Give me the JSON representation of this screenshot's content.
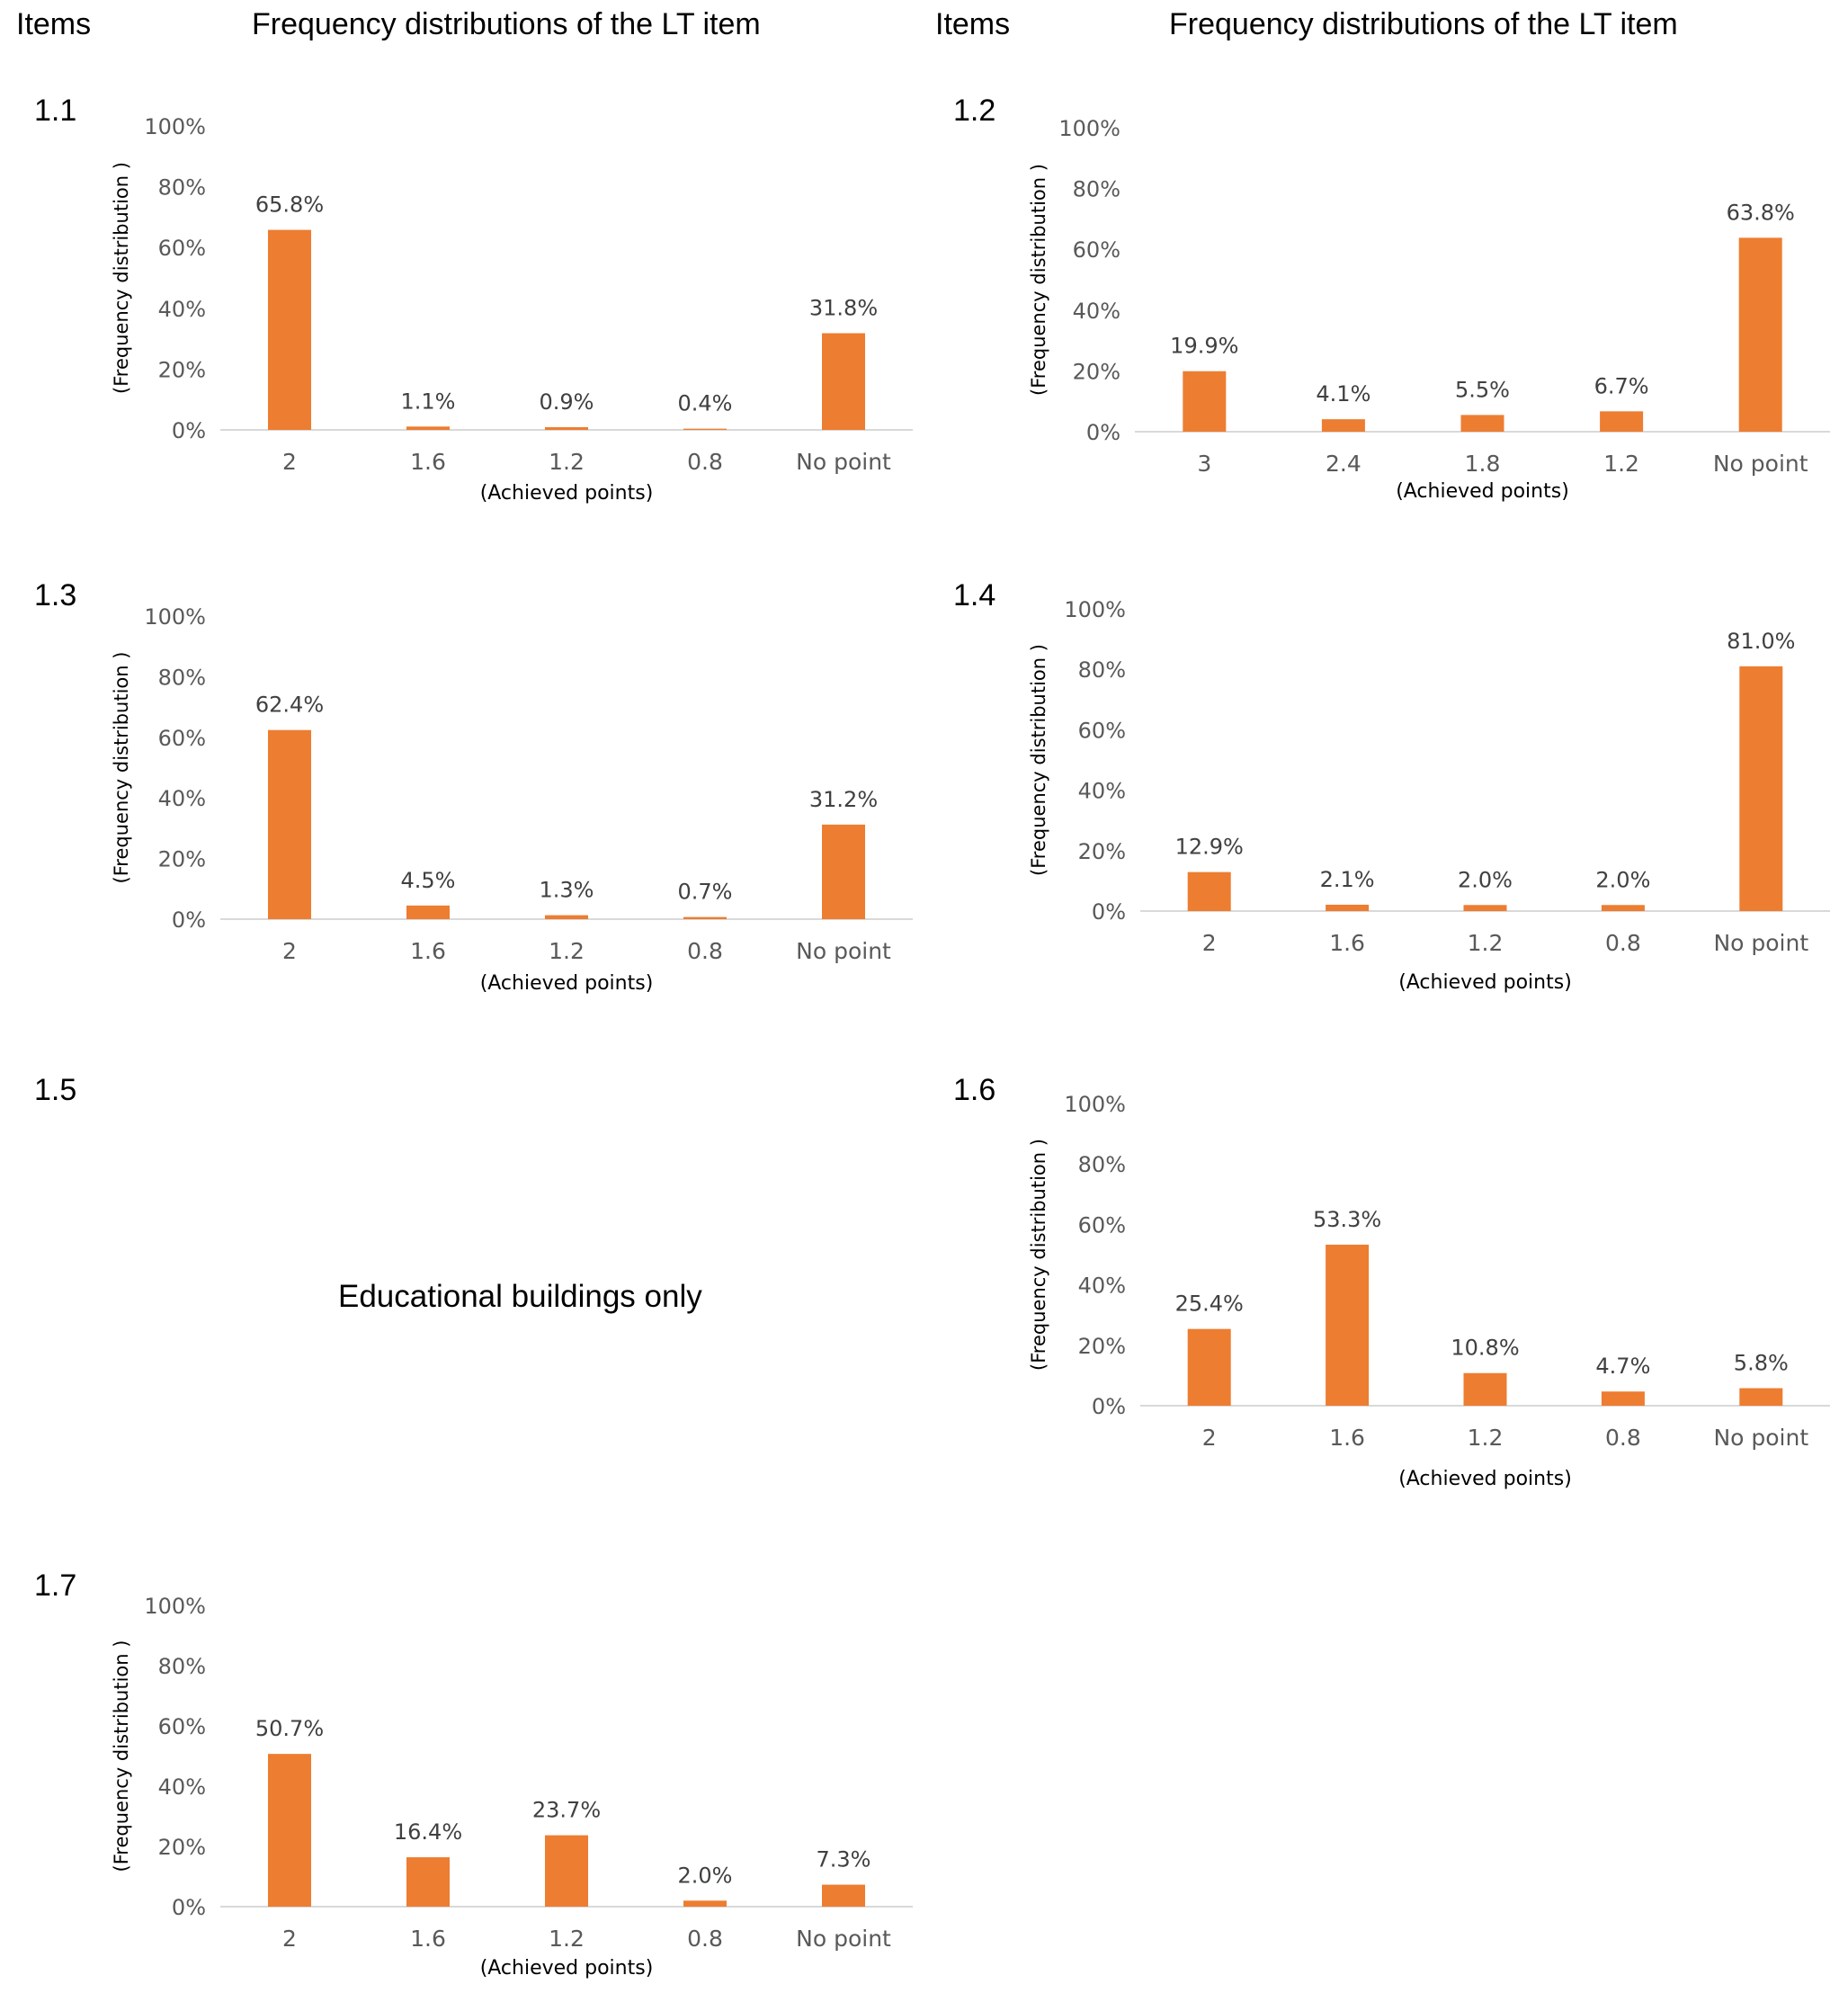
{
  "headers": {
    "left_items": "Items",
    "left_title": "Frequency distributions of the LT item",
    "right_items": "Items",
    "right_title": "Frequency distributions of the LT item"
  },
  "items": [
    {
      "id": "1.1"
    },
    {
      "id": "1.2"
    },
    {
      "id": "1.3"
    },
    {
      "id": "1.4"
    },
    {
      "id": "1.5",
      "note": "Educational buildings only"
    },
    {
      "id": "1.6"
    },
    {
      "id": "1.7"
    }
  ],
  "colors": {
    "bar": "#ED7D31",
    "axis": "#D9D9D9",
    "tick_text": "#595959",
    "label_text": "#404040"
  },
  "chart_data": [
    {
      "item": "1.1",
      "type": "bar",
      "categories": [
        "2",
        "1.6",
        "1.2",
        "0.8",
        "No point"
      ],
      "values": [
        65.8,
        1.1,
        0.9,
        0.4,
        31.8
      ],
      "value_labels": [
        "65.8%",
        "1.1%",
        "0.9%",
        "0.4%",
        "31.8%"
      ],
      "yticks": [
        "0%",
        "20%",
        "40%",
        "60%",
        "80%",
        "100%"
      ],
      "ylim": [
        0,
        100
      ],
      "xlabel": "(Achieved points)",
      "ylabel": "(Frequency distribution )",
      "grid": false
    },
    {
      "item": "1.2",
      "type": "bar",
      "categories": [
        "3",
        "2.4",
        "1.8",
        "1.2",
        "No point"
      ],
      "values": [
        19.9,
        4.1,
        5.5,
        6.7,
        63.8
      ],
      "value_labels": [
        "19.9%",
        "4.1%",
        "5.5%",
        "6.7%",
        "63.8%"
      ],
      "yticks": [
        "0%",
        "20%",
        "40%",
        "60%",
        "80%",
        "100%"
      ],
      "ylim": [
        0,
        100
      ],
      "xlabel": "(Achieved points)",
      "ylabel": "(Frequency distribution )",
      "grid": false
    },
    {
      "item": "1.3",
      "type": "bar",
      "categories": [
        "2",
        "1.6",
        "1.2",
        "0.8",
        "No point"
      ],
      "values": [
        62.4,
        4.5,
        1.3,
        0.7,
        31.2
      ],
      "value_labels": [
        "62.4%",
        "4.5%",
        "1.3%",
        "0.7%",
        "31.2%"
      ],
      "yticks": [
        "0%",
        "20%",
        "40%",
        "60%",
        "80%",
        "100%"
      ],
      "ylim": [
        0,
        100
      ],
      "xlabel": "(Achieved points)",
      "ylabel": "(Frequency distribution )",
      "grid": false
    },
    {
      "item": "1.4",
      "type": "bar",
      "categories": [
        "2",
        "1.6",
        "1.2",
        "0.8",
        "No point"
      ],
      "values": [
        12.9,
        2.1,
        2.0,
        2.0,
        81.0
      ],
      "value_labels": [
        "12.9%",
        "2.1%",
        "2.0%",
        "2.0%",
        "81.0%"
      ],
      "yticks": [
        "0%",
        "20%",
        "40%",
        "60%",
        "80%",
        "100%"
      ],
      "ylim": [
        0,
        100
      ],
      "xlabel": "(Achieved points)",
      "ylabel": "(Frequency distribution )",
      "grid": false
    },
    {
      "item": "1.6",
      "type": "bar",
      "categories": [
        "2",
        "1.6",
        "1.2",
        "0.8",
        "No point"
      ],
      "values": [
        25.4,
        53.3,
        10.8,
        4.7,
        5.8
      ],
      "value_labels": [
        "25.4%",
        "53.3%",
        "10.8%",
        "4.7%",
        "5.8%"
      ],
      "yticks": [
        "0%",
        "20%",
        "40%",
        "60%",
        "80%",
        "100%"
      ],
      "ylim": [
        0,
        100
      ],
      "xlabel": "(Achieved points)",
      "ylabel": "(Frequency distribution )",
      "grid": false
    },
    {
      "item": "1.7",
      "type": "bar",
      "categories": [
        "2",
        "1.6",
        "1.2",
        "0.8",
        "No point"
      ],
      "values": [
        50.7,
        16.4,
        23.7,
        2.0,
        7.3
      ],
      "value_labels": [
        "50.7%",
        "16.4%",
        "23.7%",
        "2.0%",
        "7.3%"
      ],
      "yticks": [
        "0%",
        "20%",
        "40%",
        "60%",
        "80%",
        "100%"
      ],
      "ylim": [
        0,
        100
      ],
      "xlabel": "(Achieved points)",
      "ylabel": "(Frequency distribution )",
      "grid": false
    }
  ]
}
